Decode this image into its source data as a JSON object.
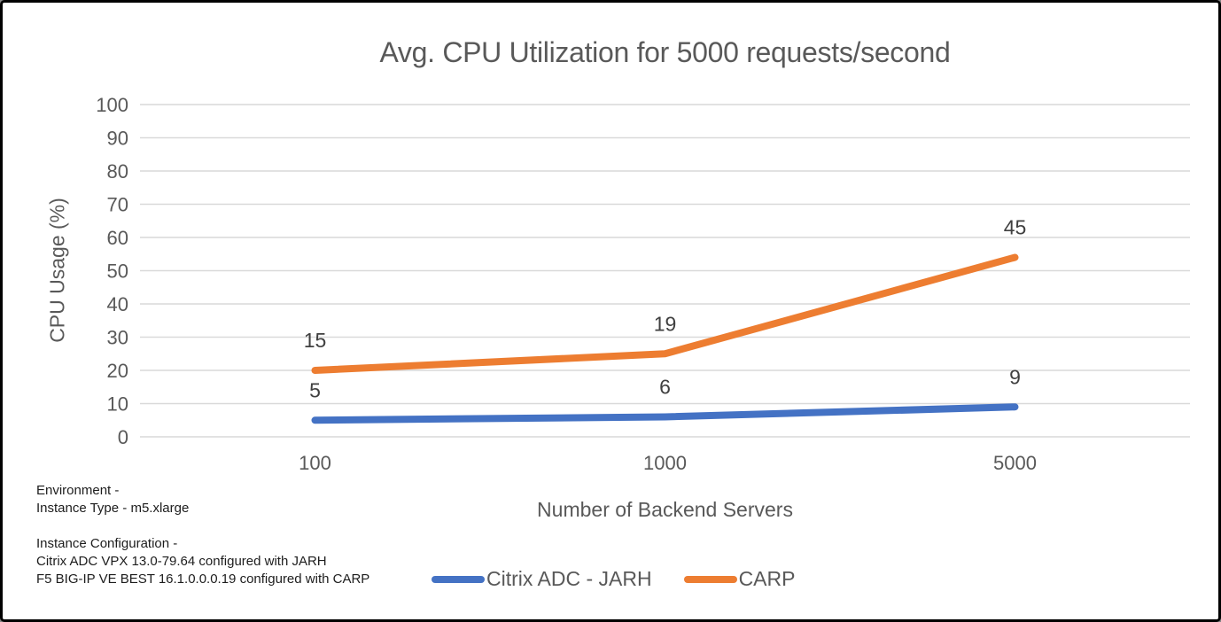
{
  "chart": {
    "title": "Avg. CPU Utilization for 5000 requests/second",
    "ylabel": "CPU Usage (%)",
    "xlabel": "Number of Backend Servers"
  },
  "chart_data": {
    "type": "line",
    "stacked": true,
    "categories": [
      "100",
      "1000",
      "5000"
    ],
    "series": [
      {
        "name": "Citrix ADC - JARH",
        "color": "#4472C4",
        "values": [
          5,
          6,
          9
        ]
      },
      {
        "name": "CARP",
        "color": "#ED7D31",
        "values": [
          15,
          19,
          45
        ]
      }
    ],
    "title": "Avg. CPU Utilization for 5000 requests/second",
    "xlabel": "Number of Backend Servers",
    "ylabel": "CPU Usage (%)",
    "ylim": [
      0,
      100
    ],
    "ytick_step": 10,
    "grid": "horizontal",
    "grid_color": "#D9D9D9",
    "tick_label_color": "#595959",
    "data_label_color": "#404040",
    "legend_position": "bottom",
    "data_labels": true,
    "line_width": 8
  },
  "notes": {
    "environment_title": "Environment -",
    "environment_line": "Instance Type - m5.xlarge",
    "configuration_title": "Instance Configuration -",
    "configuration_line1": "Citrix ADC VPX 13.0-79.64 configured with JARH",
    "configuration_line2": "F5 BIG-IP VE BEST 16.1.0.0.0.19 configured with CARP"
  }
}
